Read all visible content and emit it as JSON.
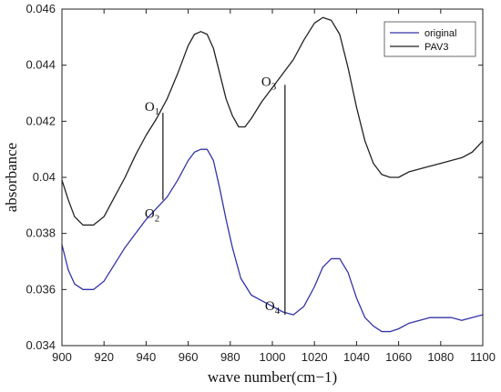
{
  "chart_data": {
    "type": "line",
    "xlabel": "wave number(cm−1)",
    "ylabel": "absorbance",
    "xlim": [
      900,
      1100
    ],
    "ylim": [
      0.034,
      0.046
    ],
    "x_ticks": [
      900,
      920,
      940,
      960,
      980,
      1000,
      1020,
      1040,
      1060,
      1080,
      1100
    ],
    "y_ticks": [
      0.034,
      0.036,
      0.038,
      0.04,
      0.042,
      0.044,
      0.046
    ],
    "y_tick_labels": [
      "0.034",
      "0.036",
      "0.038",
      "0.04",
      "0.042",
      "0.044",
      "0.046"
    ],
    "grid": false,
    "legend_position": "top-right",
    "series": [
      {
        "name": "original",
        "color": "#3333aa",
        "x": [
          900,
          903,
          906,
          910,
          915,
          920,
          925,
          930,
          935,
          940,
          945,
          950,
          955,
          960,
          963,
          966,
          969,
          972,
          975,
          978,
          981,
          985,
          990,
          995,
          1000,
          1005,
          1010,
          1015,
          1020,
          1024,
          1028,
          1032,
          1036,
          1040,
          1044,
          1048,
          1052,
          1056,
          1060,
          1065,
          1070,
          1075,
          1080,
          1085,
          1090,
          1095,
          1100
        ],
        "y": [
          0.0376,
          0.0367,
          0.0362,
          0.036,
          0.036,
          0.0363,
          0.0369,
          0.0375,
          0.038,
          0.0385,
          0.0389,
          0.0393,
          0.0399,
          0.0406,
          0.0409,
          0.041,
          0.041,
          0.0406,
          0.0396,
          0.0385,
          0.0375,
          0.0364,
          0.0358,
          0.0356,
          0.0354,
          0.0352,
          0.0351,
          0.0354,
          0.0361,
          0.0368,
          0.0371,
          0.0371,
          0.0366,
          0.0357,
          0.035,
          0.0347,
          0.0345,
          0.0345,
          0.0346,
          0.0348,
          0.0349,
          0.035,
          0.035,
          0.035,
          0.0349,
          0.035,
          0.0351
        ]
      },
      {
        "name": "PAV3",
        "color": "#222222",
        "x": [
          900,
          903,
          906,
          910,
          915,
          920,
          925,
          930,
          935,
          940,
          945,
          950,
          955,
          960,
          963,
          966,
          969,
          972,
          975,
          978,
          981,
          984,
          987,
          990,
          995,
          1000,
          1005,
          1010,
          1015,
          1020,
          1024,
          1028,
          1032,
          1036,
          1040,
          1044,
          1048,
          1052,
          1056,
          1060,
          1065,
          1070,
          1075,
          1080,
          1085,
          1090,
          1095,
          1100
        ],
        "y": [
          0.0399,
          0.0392,
          0.0386,
          0.0383,
          0.0383,
          0.0386,
          0.0393,
          0.04,
          0.0408,
          0.0415,
          0.0421,
          0.0428,
          0.0437,
          0.0447,
          0.0451,
          0.0452,
          0.0451,
          0.0446,
          0.0437,
          0.0428,
          0.0422,
          0.0418,
          0.0418,
          0.0421,
          0.0427,
          0.0432,
          0.0437,
          0.0442,
          0.0449,
          0.0455,
          0.0457,
          0.0456,
          0.0451,
          0.0439,
          0.0425,
          0.0413,
          0.0405,
          0.0401,
          0.04,
          0.04,
          0.0402,
          0.0403,
          0.0404,
          0.0405,
          0.0406,
          0.0407,
          0.0409,
          0.0413
        ]
      }
    ],
    "annotations": [
      {
        "labels": [
          "O",
          "O"
        ],
        "subs": [
          "1",
          "2"
        ],
        "x": 948,
        "y_top": 0.0423,
        "y_bottom": 0.0392
      },
      {
        "labels": [
          "O",
          "O"
        ],
        "subs": [
          "3",
          "4"
        ],
        "x": 1006,
        "y_top": 0.0433,
        "y_bottom": 0.0351
      }
    ]
  }
}
